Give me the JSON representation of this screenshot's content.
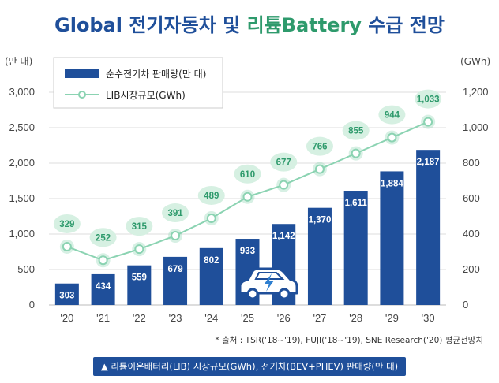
{
  "colors": {
    "title_blue": "#1f4f9a",
    "title_green": "#2e9a6c",
    "bar": "#1f4f9a",
    "line": "#8bd3b2",
    "marker_fill": "#ffffff",
    "bubble_fill": "#d6f0e2",
    "bubble_text": "#2e9a6c",
    "grid": "#dddddd",
    "axis_text": "#444444"
  },
  "chart_data": {
    "type": "bar+line",
    "title_part1": "Global 전기자동차 및 ",
    "title_part2": "리튬Battery",
    "title_part3": " 수급 전망",
    "y_left_label": "(만 대)",
    "y_right_label": "(GWh)",
    "y_left_range": [
      0,
      3000
    ],
    "y_left_ticks": [
      "0",
      "500",
      "1,000",
      "1,500",
      "2,000",
      "2,500",
      "3,000"
    ],
    "y_right_range": [
      0,
      1200
    ],
    "y_right_ticks": [
      "0",
      "200",
      "400",
      "600",
      "800",
      "1,000",
      "1,200"
    ],
    "categories": [
      "'20",
      "'21",
      "'22",
      "'23",
      "'24",
      "'25",
      "'26",
      "'27",
      "'28",
      "'29",
      "'30"
    ],
    "series": [
      {
        "name": "순수전기차 판매량(만 대)",
        "type": "bar",
        "axis": "left",
        "values": [
          303,
          434,
          559,
          679,
          802,
          933,
          1142,
          1370,
          1611,
          1884,
          2187
        ],
        "labels": [
          "303",
          "434",
          "559",
          "679",
          "802",
          "933",
          "1,142",
          "1,370",
          "1,611",
          "1,884",
          "2,187"
        ]
      },
      {
        "name": "LIB시장규모(GWh)",
        "type": "line",
        "axis": "right",
        "values": [
          329,
          252,
          315,
          391,
          489,
          610,
          677,
          766,
          855,
          944,
          1033
        ],
        "labels": [
          "329",
          "252",
          "315",
          "391",
          "489",
          "610",
          "677",
          "766",
          "855",
          "944",
          "1,033"
        ]
      }
    ],
    "grid": true,
    "legend_position": "top-left"
  },
  "footer": {
    "source": "* 출처 : TSR('18~'19), FUJI('18~'19), SNE Research('20) 평균전망치",
    "caption": "▲ 리튬이온배터리(LIB) 시장규모(GWh), 전기차(BEV+PHEV) 판매량(만 대)"
  },
  "icons": {
    "car": "electric-car-icon"
  }
}
